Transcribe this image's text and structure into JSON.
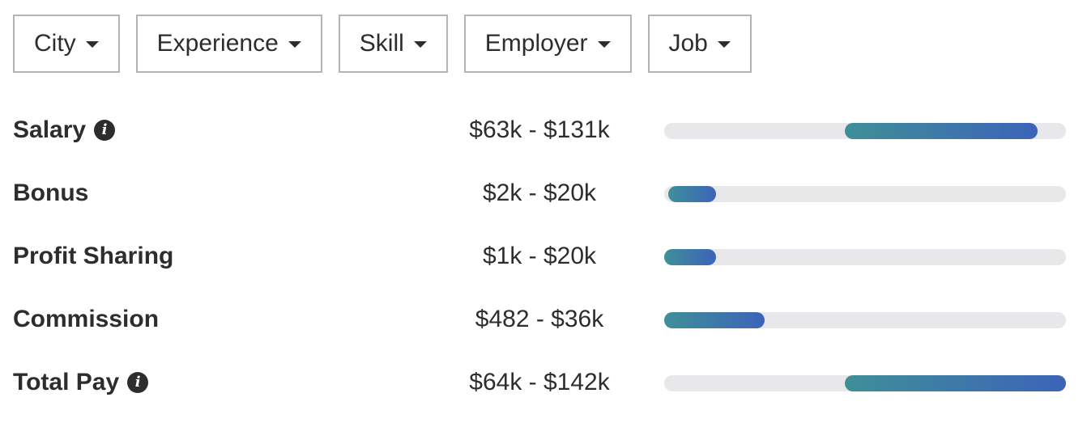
{
  "filters": [
    {
      "label": "City"
    },
    {
      "label": "Experience"
    },
    {
      "label": "Skill"
    },
    {
      "label": "Employer"
    },
    {
      "label": "Job"
    }
  ],
  "rows": [
    {
      "label": "Salary",
      "has_info": true,
      "range": "$63k - $131k",
      "bar_start": 0.45,
      "bar_end": 0.93
    },
    {
      "label": "Bonus",
      "has_info": false,
      "range": "$2k - $20k",
      "bar_start": 0.01,
      "bar_end": 0.13
    },
    {
      "label": "Profit Sharing",
      "has_info": false,
      "range": "$1k - $20k",
      "bar_start": 0.0,
      "bar_end": 0.13
    },
    {
      "label": "Commission",
      "has_info": false,
      "range": "$482 - $36k",
      "bar_start": 0.0,
      "bar_end": 0.25
    },
    {
      "label": "Total Pay",
      "has_info": true,
      "range": "$64k - $142k",
      "bar_start": 0.45,
      "bar_end": 1.0
    }
  ],
  "colors": {
    "bar_start": "#3f8f98",
    "bar_end": "#3c63b8",
    "track": "#e8e8ea"
  },
  "icons": {
    "info": "info-icon",
    "dropdown": "caret-down-icon"
  }
}
